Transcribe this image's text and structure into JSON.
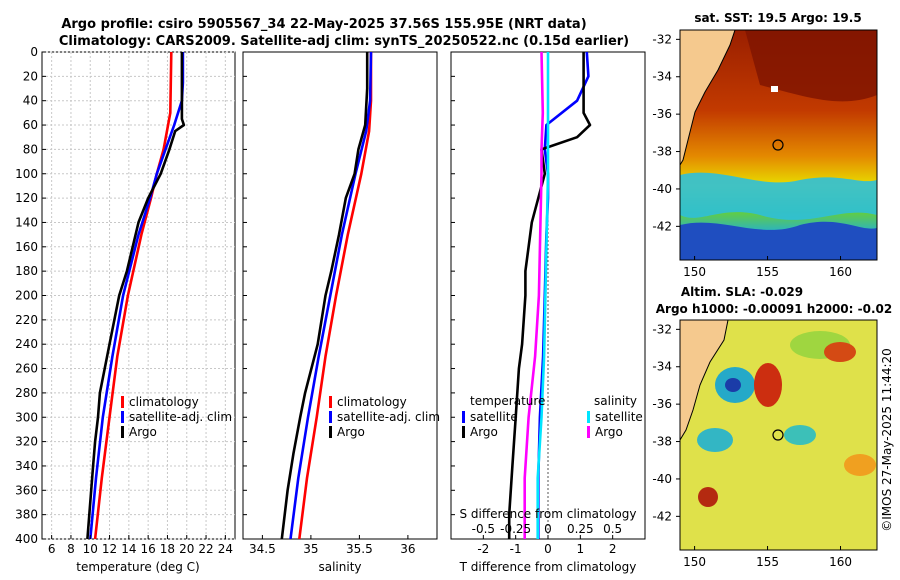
{
  "header": {
    "line1": "Argo profile: csiro 5905567_34 22-May-2025 37.56S 155.95E (NRT data)",
    "line2": "Climatology: CARS2009. Satellite-adj clim: synTS_20250522.nc (0.15d earlier)"
  },
  "depth_ticks": [
    "0",
    "20",
    "40",
    "60",
    "80",
    "100",
    "120",
    "140",
    "160",
    "180",
    "200",
    "220",
    "240",
    "260",
    "280",
    "300",
    "320",
    "340",
    "360",
    "380",
    "400"
  ],
  "colors": {
    "climatology": "#ff0000",
    "satellite": "#0000ff",
    "argo": "#000000",
    "sat_salinity": "#00e5ff",
    "argo_salinity": "#ff00ff"
  },
  "legend": {
    "climatology": "climatology",
    "satellite_adj": "satellite-adj. clim",
    "argo": "Argo",
    "temperature_head": "temperature",
    "salinity_head": "salinity",
    "satellite": "satellite"
  },
  "chart_data": [
    {
      "type": "line",
      "id": "temperature",
      "xlabel": "temperature (deg C)",
      "ylabel": "depth",
      "xlim": [
        5,
        25
      ],
      "ylim": [
        0,
        400
      ],
      "xticks": [
        "6",
        "8",
        "10",
        "12",
        "14",
        "16",
        "18",
        "20",
        "22",
        "24"
      ],
      "grid": true,
      "series": [
        {
          "name": "climatology",
          "color": "#ff0000",
          "depth": [
            0,
            50,
            80,
            100,
            120,
            150,
            200,
            250,
            300,
            350,
            400
          ],
          "values": [
            18.4,
            18.3,
            17.6,
            16.9,
            16.3,
            15.3,
            13.9,
            12.8,
            12.0,
            11.2,
            10.5
          ]
        },
        {
          "name": "satellite-adj. clim",
          "color": "#0000ff",
          "depth": [
            0,
            25,
            40,
            60,
            80,
            100,
            120,
            150,
            200,
            250,
            300,
            350,
            400
          ],
          "values": [
            19.6,
            19.6,
            19.5,
            18.7,
            17.8,
            16.9,
            16.2,
            15.0,
            13.4,
            12.3,
            11.3,
            10.6,
            10.0
          ]
        },
        {
          "name": "Argo",
          "color": "#000000",
          "depth": [
            0,
            55,
            60,
            65,
            80,
            100,
            120,
            140,
            160,
            180,
            200,
            240,
            260,
            280,
            300,
            320,
            340,
            360,
            380,
            400
          ],
          "values": [
            19.5,
            19.5,
            19.7,
            18.8,
            18.2,
            17.3,
            16.0,
            15.0,
            14.4,
            13.8,
            13.0,
            12.0,
            11.5,
            11.0,
            10.8,
            10.5,
            10.3,
            10.1,
            9.9,
            9.7
          ]
        }
      ]
    },
    {
      "type": "line",
      "id": "salinity",
      "xlabel": "salinity",
      "ylabel": "depth",
      "xlim": [
        34.3,
        36.3
      ],
      "ylim": [
        0,
        400
      ],
      "xticks": [
        "34.5",
        "35",
        "35.5",
        "36"
      ],
      "series": [
        {
          "name": "climatology",
          "color": "#ff0000",
          "depth": [
            0,
            40,
            65,
            100,
            150,
            200,
            250,
            300,
            350,
            400
          ],
          "values": [
            35.62,
            35.62,
            35.6,
            35.52,
            35.38,
            35.26,
            35.15,
            35.06,
            34.96,
            34.88
          ]
        },
        {
          "name": "satellite-adj. clim",
          "color": "#0000ff",
          "depth": [
            0,
            40,
            65,
            100,
            150,
            200,
            250,
            300,
            350,
            400
          ],
          "values": [
            35.62,
            35.61,
            35.57,
            35.46,
            35.32,
            35.2,
            35.08,
            34.97,
            34.87,
            34.79
          ]
        },
        {
          "name": "Argo",
          "color": "#000000",
          "depth": [
            0,
            30,
            60,
            80,
            100,
            120,
            150,
            180,
            200,
            240,
            280,
            300,
            330,
            360,
            400
          ],
          "values": [
            35.58,
            35.58,
            35.56,
            35.49,
            35.45,
            35.36,
            35.29,
            35.21,
            35.15,
            35.07,
            34.94,
            34.89,
            34.82,
            34.76,
            34.7
          ]
        }
      ]
    },
    {
      "type": "line",
      "id": "differences",
      "xlabel": "T difference from climatology",
      "xlabel_top": "S difference from climatology",
      "ylabel": "depth",
      "xlim": [
        -3,
        3
      ],
      "ylim": [
        0,
        400
      ],
      "xticks": [
        "-2",
        "-1",
        "0",
        "1",
        "2"
      ],
      "xticks_top": [
        "-0.5",
        "-0.25",
        "0",
        "0.25",
        "0.5"
      ],
      "series": [
        {
          "name": "temperature satellite",
          "color": "#0000ff",
          "depth": [
            0,
            20,
            40,
            60,
            80,
            100,
            120,
            150,
            200,
            250,
            300,
            350,
            400
          ],
          "values": [
            1.2,
            1.25,
            0.9,
            -0.05,
            -0.1,
            0.0,
            0.0,
            -0.05,
            -0.1,
            -0.15,
            -0.25,
            -0.3,
            -0.3
          ]
        },
        {
          "name": "temperature Argo",
          "color": "#000000",
          "depth": [
            0,
            50,
            60,
            70,
            80,
            100,
            120,
            140,
            160,
            180,
            200,
            240,
            260,
            300,
            340,
            380,
            400
          ],
          "values": [
            1.1,
            1.1,
            1.3,
            0.9,
            -0.2,
            -0.1,
            -0.3,
            -0.5,
            -0.6,
            -0.7,
            -0.7,
            -0.8,
            -0.9,
            -1.0,
            -1.1,
            -1.2,
            -1.2
          ]
        },
        {
          "name": "salinity satellite",
          "color": "#00e5ff",
          "depth": [
            0,
            60,
            100,
            150,
            200,
            250,
            300,
            350,
            400
          ],
          "values": [
            0.0,
            0.0,
            0.0,
            -0.01,
            -0.02,
            -0.03,
            -0.05,
            -0.08,
            -0.08
          ]
        },
        {
          "name": "salinity Argo",
          "color": "#ff00ff",
          "depth": [
            0,
            50,
            80,
            100,
            150,
            200,
            250,
            300,
            350,
            400
          ],
          "values": [
            -0.05,
            -0.04,
            -0.05,
            -0.05,
            -0.06,
            -0.07,
            -0.1,
            -0.15,
            -0.18,
            -0.18
          ]
        }
      ]
    }
  ],
  "sst_map": {
    "title": "sat. SST: 19.5 Argo: 19.5",
    "lat_ticks": [
      "-32",
      "-34",
      "-36",
      "-38",
      "-40",
      "-42"
    ],
    "lon_ticks": [
      "150",
      "155",
      "160"
    ]
  },
  "sla_map": {
    "title1": "Altim. SLA: -0.029",
    "title2": "Argo h1000: -0.00091 h2000: -0.02",
    "lat_ticks": [
      "-32",
      "-34",
      "-36",
      "-38",
      "-40",
      "-42"
    ],
    "lon_ticks": [
      "150",
      "155",
      "160"
    ]
  },
  "sidebar_stamp": "©IMOS 27-May-2025 11:44:20"
}
